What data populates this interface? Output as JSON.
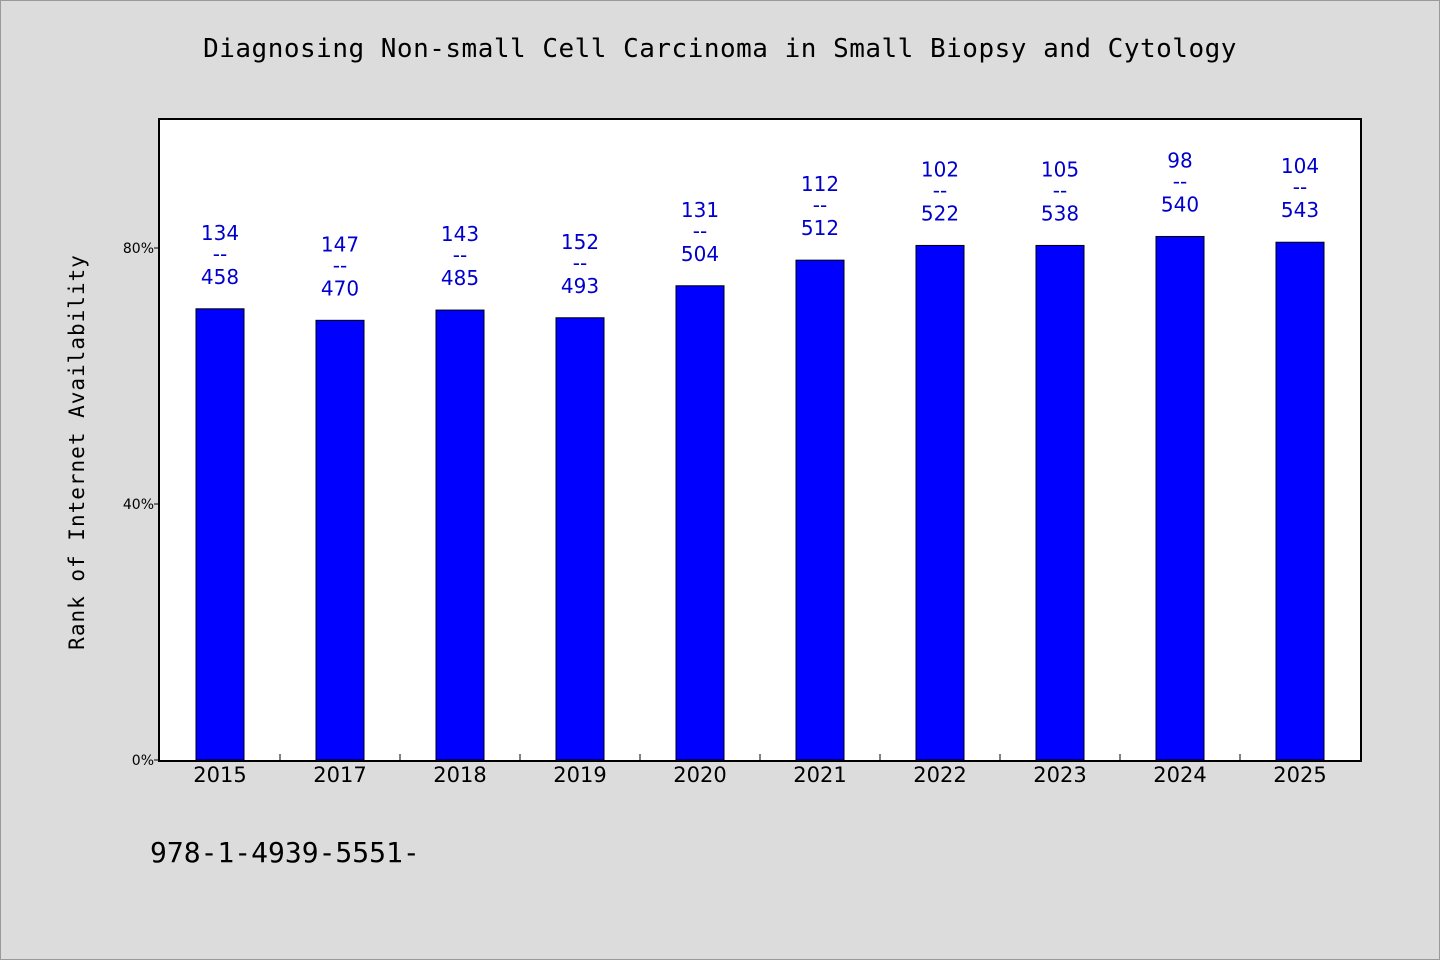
{
  "chart_data": {
    "type": "bar",
    "title": "Diagnosing Non-small Cell Carcinoma in Small Biopsy and Cytology",
    "xlabel": "",
    "ylabel": "Rank of Internet Availability",
    "ylim": [
      0,
      100
    ],
    "yticks": [
      0,
      40,
      80
    ],
    "ytick_labels": [
      "0%",
      "40%",
      "80%"
    ],
    "categories": [
      "2015",
      "2017",
      "2018",
      "2019",
      "2020",
      "2021",
      "2022",
      "2023",
      "2024",
      "2025"
    ],
    "series": [
      {
        "values": [
          70.5,
          68.7,
          70.3,
          69.1,
          74.1,
          78.1,
          80.4,
          80.4,
          81.8,
          80.9
        ],
        "labels_top": [
          "134",
          "147",
          "143",
          "152",
          "131",
          "112",
          "102",
          "105",
          "98",
          "104"
        ],
        "labels_sep": "--",
        "labels_bottom": [
          "458",
          "470",
          "485",
          "493",
          "504",
          "512",
          "522",
          "538",
          "540",
          "543"
        ]
      }
    ],
    "colors": {
      "bar": "#0000ff",
      "data_label": "#0000cc",
      "plot_background": "#ffffff",
      "page_background": "#dcdcdc"
    },
    "grid": false,
    "legend": "none"
  },
  "footnote": "978-1-4939-5551-"
}
